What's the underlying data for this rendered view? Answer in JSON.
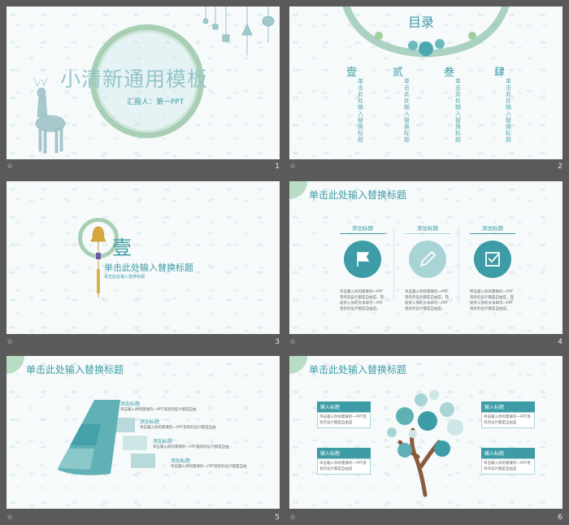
{
  "slides": [
    {
      "number": "1",
      "title": "小清新通用模板",
      "subtitle": "汇报人：第一PPT"
    },
    {
      "number": "2",
      "title": "目录",
      "items": [
        {
          "numeral": "壹",
          "text": "单击此处输入替换标题"
        },
        {
          "numeral": "贰",
          "text": "单击此处输入替换标题"
        },
        {
          "numeral": "叁",
          "text": "单击此处输入替换标题"
        },
        {
          "numeral": "肆",
          "text": "单击此处输入替换标题"
        }
      ]
    },
    {
      "number": "3",
      "numeral": "壹",
      "title": "单击此处输入替换标题",
      "subtitle": "单击此处输入替换标题"
    },
    {
      "number": "4",
      "title": "单击此处输入替换标题",
      "columns": [
        {
          "label": "添加标题",
          "icon": "flag-icon",
          "text": "单击输入你的需要的一PPT现有的设计都是自由是，而就参入你的文本即可一PPT现有的设计都是自由是。"
        },
        {
          "label": "添加标题",
          "icon": "pencil-icon",
          "text": "单击输入你的需要的一PPT现有的设计都是自由是，而就参入你的文本即可一PPT现有的设计都是自由是。"
        },
        {
          "label": "添加标题",
          "icon": "check-icon",
          "text": "单击输入你的需要的一PPT现有的设计都是自由是，而就参入你的文本即可一PPT现有的设计都是自由是。"
        }
      ]
    },
    {
      "number": "5",
      "title": "单击此处输入替换标题",
      "steps": [
        {
          "label": "添加标题",
          "text": "单击输入你的需要的一PPT现有的设计都是自由"
        },
        {
          "label": "添加标题",
          "text": "单击输入你的需要的一PPT现有的设计都是自由"
        },
        {
          "label": "添加标题",
          "text": "单击输入你的需要的一PPT现有的设计都是自由"
        },
        {
          "label": "添加标题",
          "text": "单击输入你的需要的一PPT现有的设计都是自由"
        }
      ]
    },
    {
      "number": "6",
      "title": "单击此处输入替换标题",
      "boxes": [
        {
          "label": "输入标题",
          "text": "单击输入你的需要的一PPT现有的设计都是自由是"
        },
        {
          "label": "输入标题",
          "text": "单击输入你的需要的一PPT现有的设计都是自由是"
        },
        {
          "label": "输入标题",
          "text": "单击输入你的需要的一PPT现有的设计都是自由是"
        },
        {
          "label": "输入标题",
          "text": "单击输入你的需要的一PPT现有的设计都是自由是"
        }
      ]
    }
  ],
  "star_glyph": "☆",
  "colors": {
    "accent": "#3d9ca6",
    "light": "#a9d4d6",
    "background": "#5a5a5a"
  }
}
